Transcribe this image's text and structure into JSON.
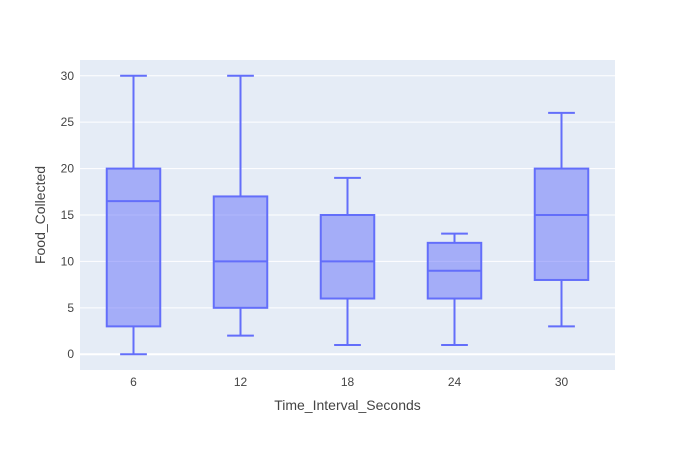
{
  "chart_data": {
    "type": "box",
    "title": "",
    "xlabel": "Time_Interval_Seconds",
    "ylabel": "Food_Collected",
    "categories": [
      "6",
      "12",
      "18",
      "24",
      "30"
    ],
    "boxes": [
      {
        "category": "6",
        "min": 0,
        "q1": 3,
        "median": 16.5,
        "q3": 20,
        "max": 30
      },
      {
        "category": "12",
        "min": 2,
        "q1": 5,
        "median": 10,
        "q3": 17,
        "max": 30
      },
      {
        "category": "18",
        "min": 1,
        "q1": 6,
        "median": 10,
        "q3": 15,
        "max": 19
      },
      {
        "category": "24",
        "min": 1,
        "q1": 6,
        "median": 9,
        "q3": 12,
        "max": 13
      },
      {
        "category": "30",
        "min": 3,
        "q1": 8,
        "median": 15,
        "q3": 20,
        "max": 26
      }
    ],
    "yticks": [
      0,
      5,
      10,
      15,
      20,
      25,
      30
    ],
    "ylim": [
      -1.7,
      31.7
    ],
    "grid": true,
    "legend": "none",
    "colors": {
      "plot_background": "#E5ECF6",
      "gridline": "#FFFFFF",
      "box_line": "#636EFA",
      "box_fill": "rgba(99,110,250,0.5)",
      "tick_text": "#444444"
    }
  }
}
